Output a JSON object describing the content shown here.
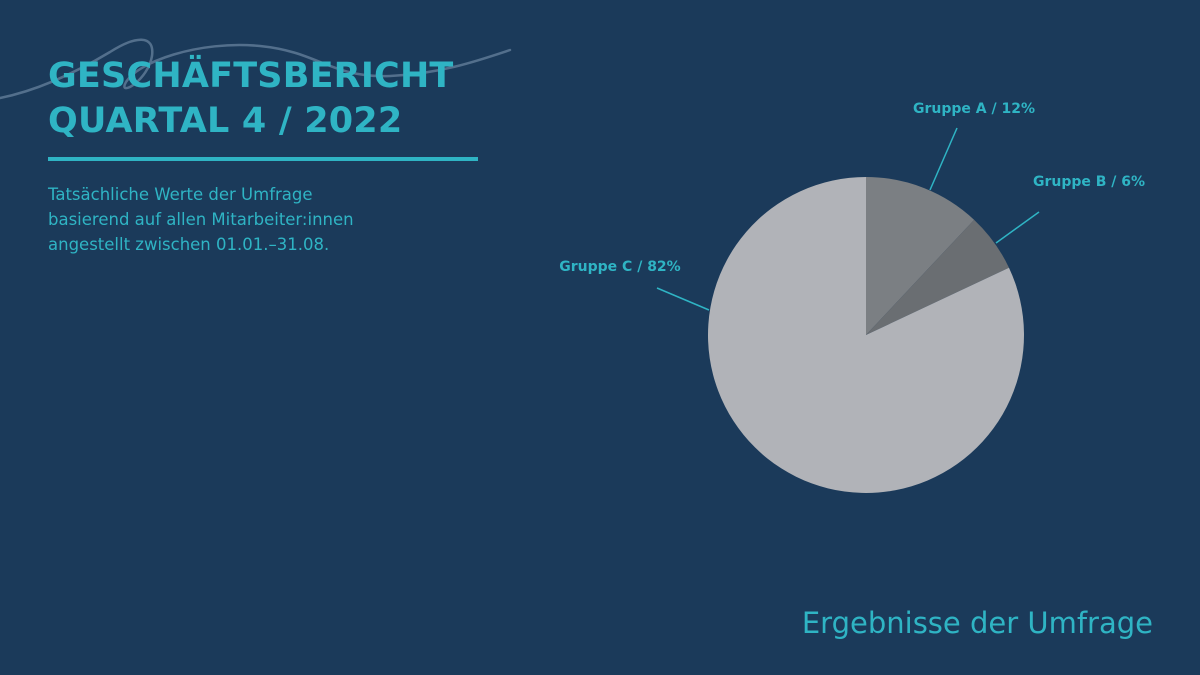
{
  "header": {
    "title_line1": "GESCHÄFTSBERICHT",
    "title_line2": "QUARTAL 4 / 2022"
  },
  "subtitle": {
    "line1": "Tatsächliche Werte der Umfrage",
    "line2": "basierend auf allen Mitarbeiter:innen",
    "line3": "angestellt zwischen 01.01.–31.08."
  },
  "footer": {
    "caption": "Ergebnisse der Umfrage"
  },
  "colors": {
    "background": "#1b3a5a",
    "accent": "#2fb4c4"
  },
  "chart_data": {
    "type": "pie",
    "title": "",
    "slices": [
      {
        "label": "Gruppe A / 12%",
        "name": "Gruppe A",
        "value": 12,
        "color": "#7b7f83"
      },
      {
        "label": "Gruppe B / 6%",
        "name": "Gruppe B",
        "value": 6,
        "color": "#6a6e72"
      },
      {
        "label": "Gruppe C / 82%",
        "name": "Gruppe C",
        "value": 82,
        "color": "#b1b3b8"
      }
    ]
  }
}
